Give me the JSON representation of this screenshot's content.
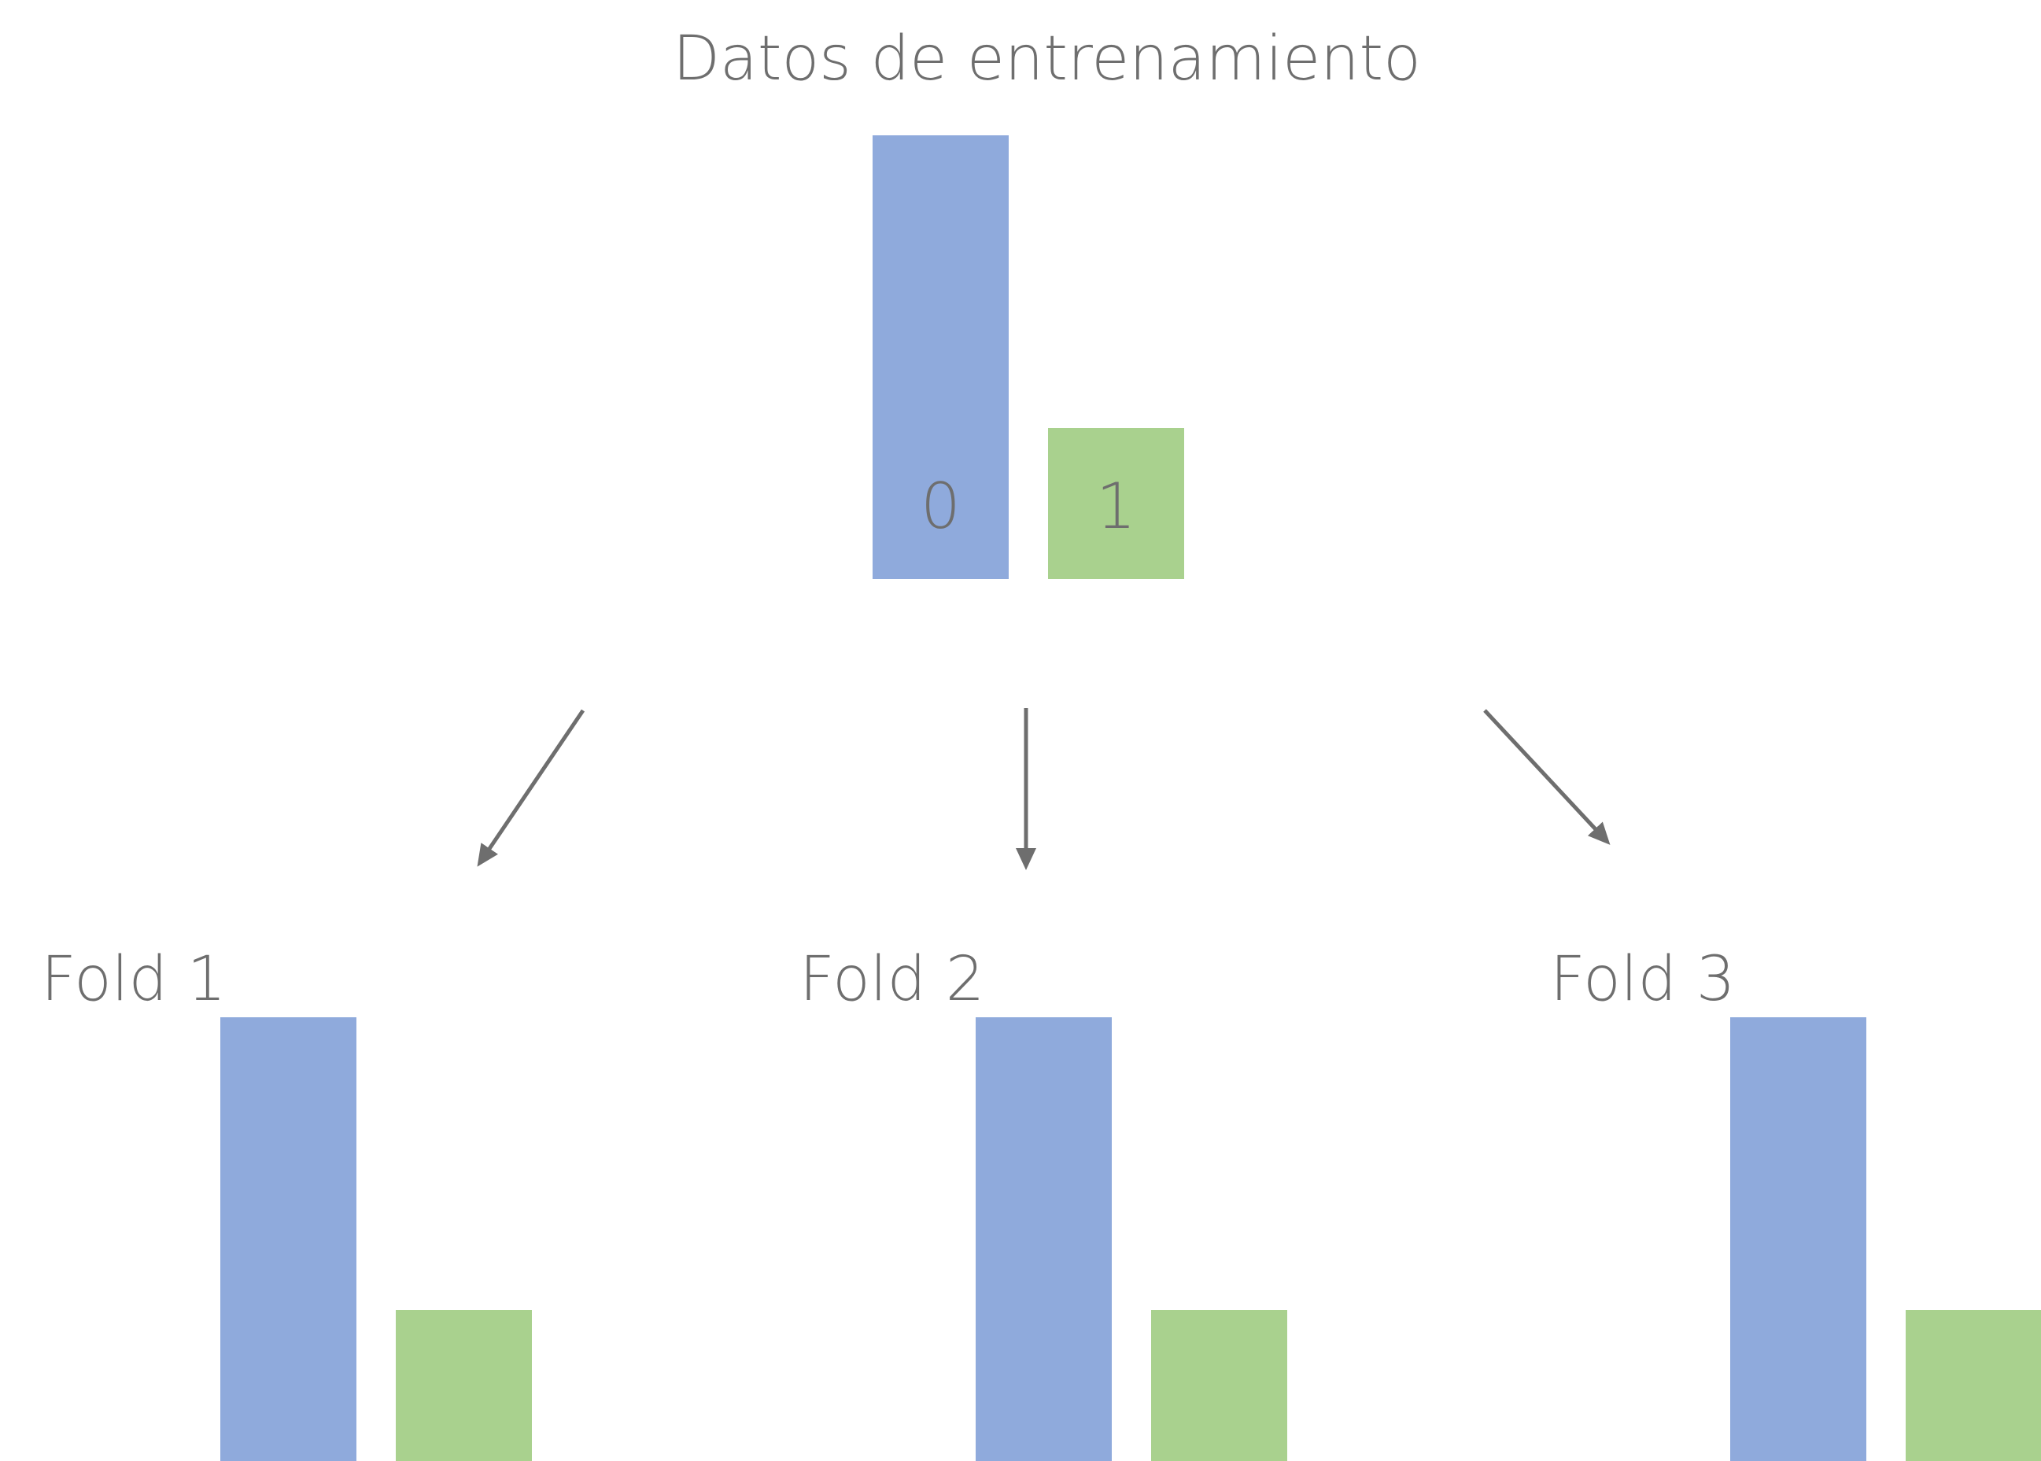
{
  "diagram": {
    "title": "Datos de entrenamiento",
    "class_labels": [
      "0",
      "1"
    ],
    "folds": [
      {
        "label": "Fold 1"
      },
      {
        "label": "Fold 2"
      },
      {
        "label": "Fold 3"
      }
    ],
    "class_proportion": {
      "class_0": 1.0,
      "class_1": 0.34
    },
    "colors": {
      "class_0": "#8faadc",
      "class_1": "#a9d18e",
      "text": "#6e6e6e",
      "arrow": "#6e6e6e"
    },
    "arrows": [
      {
        "from": "Datos de entrenamiento",
        "to": "Fold 1"
      },
      {
        "from": "Datos de entrenamiento",
        "to": "Fold 2"
      },
      {
        "from": "Datos de entrenamiento",
        "to": "Fold 3"
      }
    ]
  }
}
